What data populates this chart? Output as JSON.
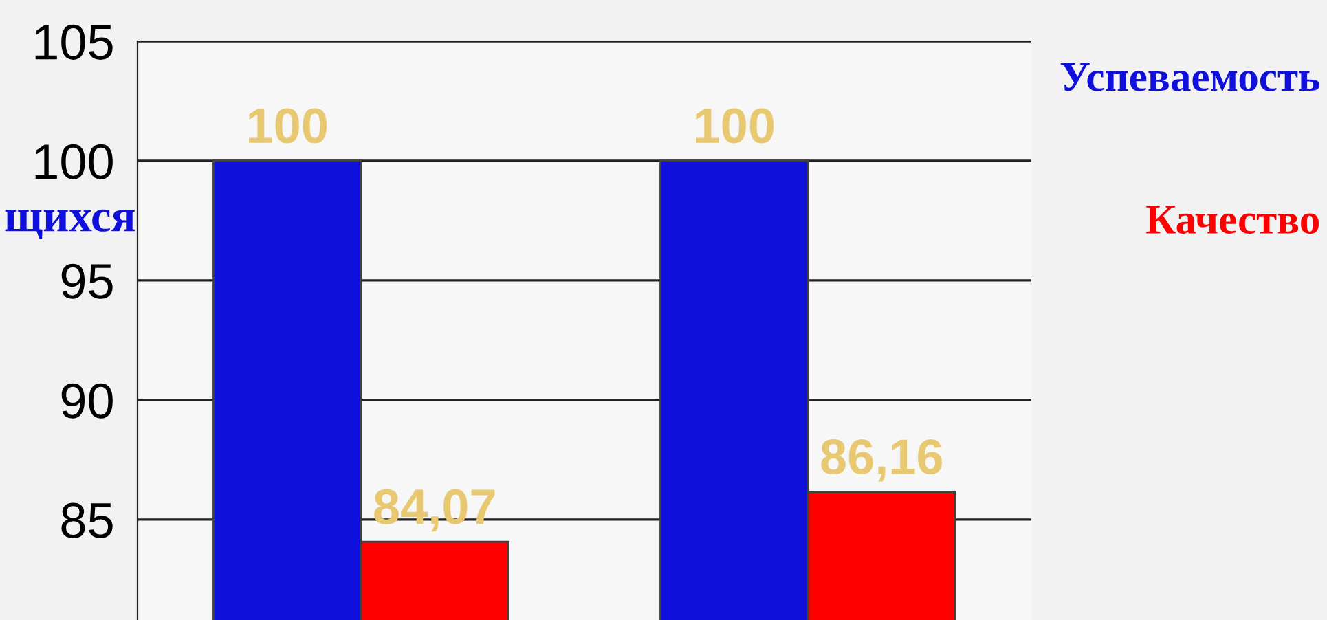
{
  "chart_data": {
    "type": "bar",
    "categories": [
      null,
      null
    ],
    "series": [
      {
        "name": "Успеваемость",
        "color": "#1010dd",
        "values": [
          100,
          100
        ],
        "value_labels": [
          "100",
          "100"
        ]
      },
      {
        "name": "Качество",
        "color": "#ff0000",
        "values": [
          84.07,
          86.16
        ],
        "value_labels": [
          "84,07",
          "86,16"
        ]
      }
    ],
    "ylim": [
      80.8,
      105
    ],
    "yticks": [
      85,
      90,
      95,
      100,
      105
    ],
    "grid": "y",
    "legend": "right",
    "annotations": [
      "щихся"
    ]
  }
}
